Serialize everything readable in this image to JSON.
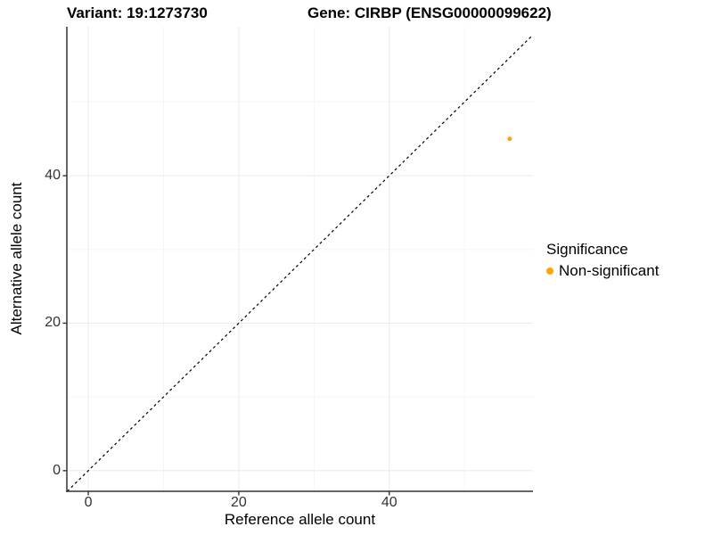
{
  "chart_data": {
    "type": "scatter",
    "titles": {
      "left": "Variant: 19:1273730",
      "right": "Gene: CIRBP (ENSG00000099622)"
    },
    "xlabel": "Reference allele count",
    "ylabel": "Alternative allele count",
    "xlim": [
      -2.85,
      59.1
    ],
    "ylim": [
      -2.8,
      60.2
    ],
    "x_major_ticks": [
      0,
      20,
      40
    ],
    "y_major_ticks": [
      0,
      20,
      40
    ],
    "x_minor_ticks": [
      10,
      30,
      50
    ],
    "y_minor_ticks": [
      10,
      30,
      50
    ],
    "reference_line": {
      "equation": "y = x",
      "style": "dashed",
      "color": "#000000"
    },
    "series": [
      {
        "name": "Non-significant",
        "color": "#FFA500",
        "points": [
          {
            "x": 56,
            "y": 45
          }
        ]
      }
    ],
    "legend": {
      "title": "Significance",
      "position": "right",
      "entries": [
        {
          "label": "Non-significant",
          "color": "#FFA500"
        }
      ]
    },
    "grid": {
      "major_color": "#ECECEC",
      "minor_color": "#F5F5F5"
    },
    "axis_color": "#333333",
    "background": "#FFFFFF"
  }
}
